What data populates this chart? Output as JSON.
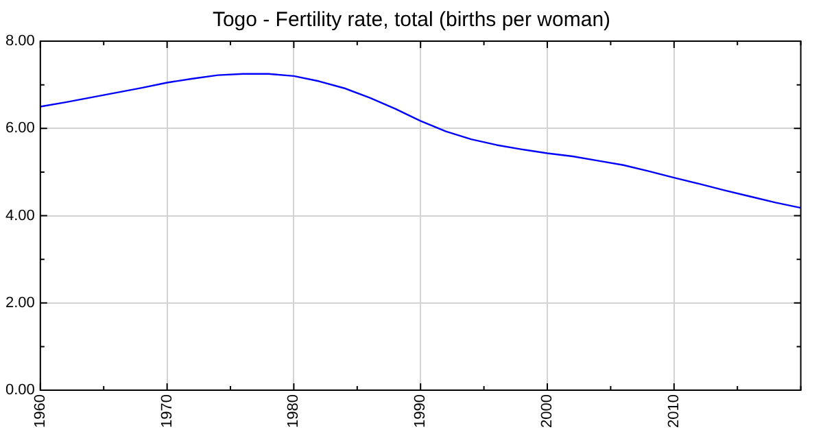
{
  "chart_data": {
    "type": "line",
    "title": "Togo - Fertility rate, total (births per woman)",
    "x": [
      1960,
      1962,
      1964,
      1966,
      1968,
      1970,
      1972,
      1974,
      1976,
      1978,
      1980,
      1982,
      1984,
      1986,
      1988,
      1990,
      1992,
      1994,
      1996,
      1998,
      2000,
      2002,
      2004,
      2006,
      2008,
      2010,
      2012,
      2014,
      2016,
      2018,
      2020
    ],
    "series": [
      {
        "color": "#0000ff",
        "values": [
          6.5,
          6.6,
          6.71,
          6.82,
          6.93,
          7.05,
          7.14,
          7.22,
          7.25,
          7.25,
          7.2,
          7.08,
          6.92,
          6.7,
          6.45,
          6.17,
          5.93,
          5.75,
          5.62,
          5.52,
          5.43,
          5.36,
          5.26,
          5.16,
          5.02,
          4.87,
          4.73,
          4.58,
          4.44,
          4.3,
          4.18
        ]
      }
    ],
    "xlim": [
      1960,
      2020
    ],
    "xticks": [
      1960,
      {
        "value": 1965,
        "label": null
      },
      1970,
      {
        "value": 1975,
        "label": null
      },
      1980,
      {
        "value": 1985,
        "label": null
      },
      1990,
      {
        "value": 1995,
        "label": null
      },
      2000,
      {
        "value": 2005,
        "label": null
      },
      2010,
      {
        "value": 2015,
        "label": null
      },
      {
        "value": 2020,
        "label": null
      }
    ],
    "ylim": [
      0,
      8
    ],
    "yticks": [
      {
        "value": 0,
        "label": "0.00"
      },
      {
        "value": 1,
        "label": null
      },
      {
        "value": 2,
        "label": "2.00"
      },
      {
        "value": 3,
        "label": null
      },
      {
        "value": 4,
        "label": "4.00"
      },
      {
        "value": 5,
        "label": null
      },
      {
        "value": 6,
        "label": "6.00"
      },
      {
        "value": 7,
        "label": null
      },
      {
        "value": 8,
        "label": "8.00"
      }
    ],
    "grid": true,
    "legend": false,
    "marker": "none",
    "line_style": "solid"
  }
}
